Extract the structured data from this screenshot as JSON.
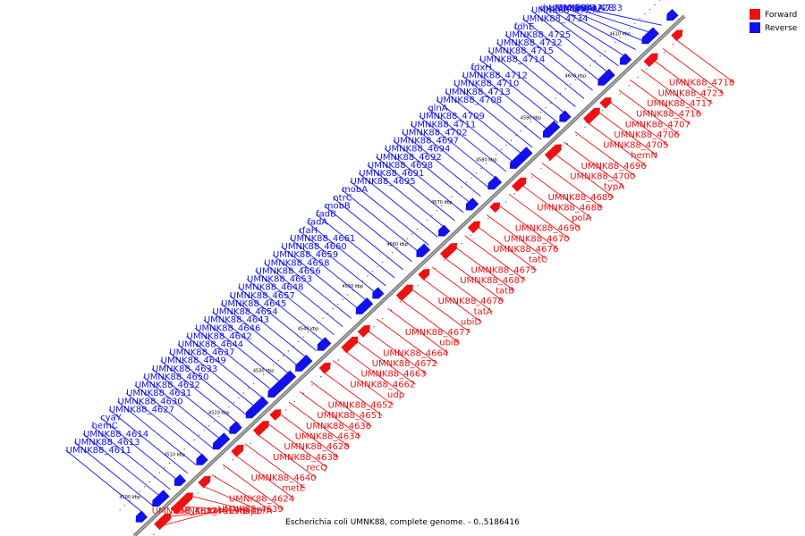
{
  "caption": "Escherichia coli UMNK88, complete genome. - 0..5186416",
  "legend": {
    "forward_label": "Forward",
    "reverse_label": "Reverse"
  },
  "colors": {
    "forward": "#ee1111",
    "reverse": "#1111ee",
    "backbone": "#808080"
  },
  "ticks": [
    "4500 kbp",
    "4510 kbp",
    "4520 kbp",
    "4530 kbp",
    "4540 kbp",
    "4550 kbp",
    "4560 kbp",
    "4570 kbp",
    "4580 kbp",
    "4590 kbp",
    "4600 kbp",
    "4610 kbp"
  ],
  "forward_labels": [
    "UMNK88_4718",
    "UMNK88_4723",
    "UMNK88_4717",
    "UMNK88_4716",
    "UMNK88_4707",
    "UMNK88_4706",
    "UMNK88_4705",
    "hemN",
    "UMNK88_4696",
    "UMNK88_4700",
    "typA",
    "UMNK88_4689",
    "UMNK88_4688",
    "polA",
    "UMNK88_4690",
    "UMNK88_4670",
    "UMNK88_4676",
    "tatC",
    "UMNK88_4675",
    "UMNK88_4687",
    "tatB",
    "UMNK88_4678",
    "tatA",
    "ubiD",
    "UMNK88_4677",
    "ubiB",
    "UMNK88_4664",
    "UMNK88_4672",
    "UMNK88_4663",
    "UMNK88_4662",
    "udp",
    "UMNK88_4652",
    "UMNK88_4651",
    "UMNK88_4636",
    "UMNK88_4634",
    "UMNK88_4628",
    "UMNK88_4638",
    "recQ",
    "UMNK88_4640",
    "metE",
    "UMNK88_4624",
    "UMNK88_4639",
    "corA",
    "dapF",
    "uvrD",
    "UMNK88_4619",
    "xerC",
    "UMNK88_4617"
  ],
  "reverse_labels": [
    "rhaA",
    "fruA",
    "rhaD",
    "UMNK88_4733",
    "UMNK88_4728",
    "rhaU",
    "UMNK88_4727",
    "UMNK88_4734",
    "fdhE",
    "UMNK88_4725",
    "UMNK88_4732",
    "UMNK88_4715",
    "UMNK88_4714",
    "fdxH",
    "UMNK88_4712",
    "UMNK88_4710",
    "UMNK88_4713",
    "UMNK88_4708",
    "glnA",
    "UMNK88_4709",
    "UMNK88_4711",
    "UMNK88_4702",
    "UMNK88_4697",
    "UMNK88_4694",
    "UMNK88_4692",
    "UMNK88_4698",
    "UMNK88_4691",
    "UMNK88_4695",
    "mobA",
    "ntrC",
    "mobB",
    "fadB",
    "fadA",
    "rfaH",
    "UMNK88_4661",
    "UMNK88_4660",
    "UMNK88_4659",
    "UMNK88_4658",
    "UMNK88_4656",
    "UMNK88_4653",
    "UMNK88_4648",
    "UMNK88_4657",
    "UMNK88_4645",
    "UMNK88_4654",
    "UMNK88_4643",
    "UMNK88_4646",
    "UMNK88_4642",
    "UMNK88_4644",
    "UMNK88_4637",
    "UMNK88_4649",
    "UMNK88_4633",
    "UMNK88_4650",
    "UMNK88_4632",
    "UMNK88_4631",
    "UMNK88_4630",
    "UMNK88_4627",
    "cyaY",
    "hemC",
    "UMNK88_4614",
    "UMNK88_4613",
    "UMNK88_4611"
  ]
}
